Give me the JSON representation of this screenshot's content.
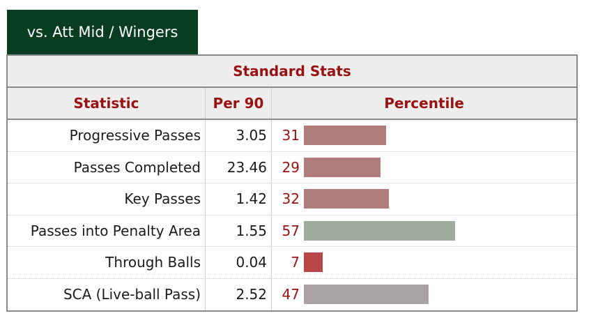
{
  "tab": {
    "label": "vs. Att Mid / Wingers"
  },
  "section_title": "Standard Stats",
  "columns": {
    "statistic": "Statistic",
    "per90": "Per 90",
    "percentile": "Percentile"
  },
  "rows": [
    {
      "label": "Progressive Passes",
      "per90": "3.05",
      "percentile": "31",
      "percentile_value": 31,
      "bar_color": "#b07b7b"
    },
    {
      "label": "Passes Completed",
      "per90": "23.46",
      "percentile": "29",
      "percentile_value": 29,
      "bar_color": "#b07b7b"
    },
    {
      "label": "Key Passes",
      "per90": "1.42",
      "percentile": "32",
      "percentile_value": 32,
      "bar_color": "#b07b7b"
    },
    {
      "label": "Passes into Penalty Area",
      "per90": "1.55",
      "percentile": "57",
      "percentile_value": 57,
      "bar_color": "#9eac9e"
    },
    {
      "label": "Through Balls",
      "per90": "0.04",
      "percentile": "7",
      "percentile_value": 7,
      "bar_color": "#b94646"
    },
    {
      "label": "SCA (Live-ball Pass)",
      "per90": "2.52",
      "percentile": "47",
      "percentile_value": 47,
      "bar_color": "#aaa3a3"
    }
  ]
}
